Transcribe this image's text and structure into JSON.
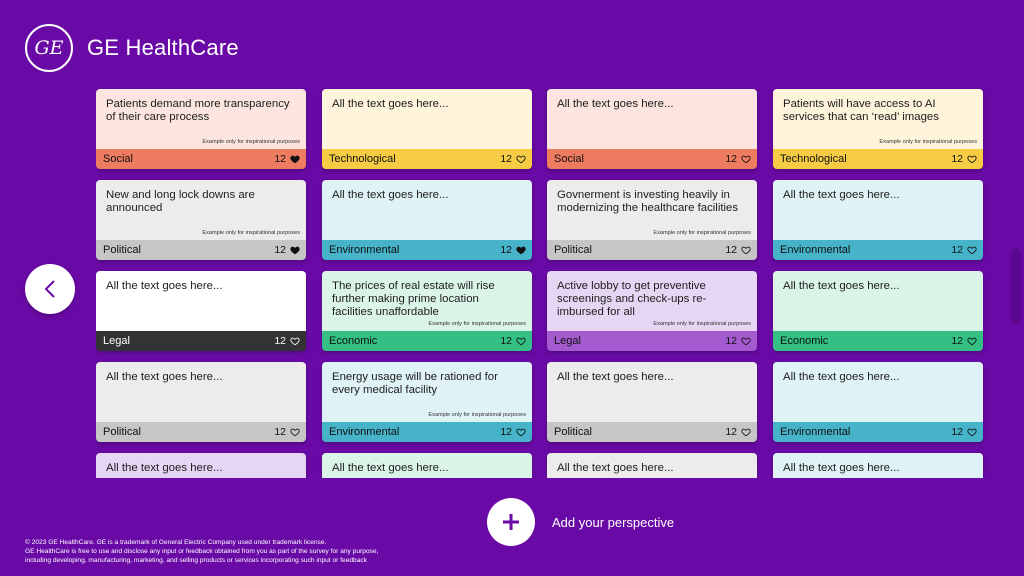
{
  "brand": {
    "logo_text": "GE",
    "name": "GE HealthCare"
  },
  "colors": {
    "background": "#6a0aa6",
    "Social": {
      "body": "#fde5df",
      "footer": "#ee7c60"
    },
    "Technological": {
      "body": "#fef4dc",
      "footer": "#f6cc45"
    },
    "Political": {
      "body": "#ececec",
      "footer": "#c6c6c6"
    },
    "Environmental": {
      "body": "#dff2f5",
      "footer": "#46b3c8"
    },
    "Legal": {
      "body": "#ffffff",
      "footer": "#333333"
    },
    "Economic": {
      "body": "#dbf4e8",
      "footer": "#34c084"
    },
    "LegalPurple": {
      "body": "#e6d6f4",
      "footer": "#a45bd0"
    }
  },
  "cards": [
    {
      "text": "Patients demand more transparency of their care process",
      "note": "Example only for inspirational purposes",
      "category": "Social",
      "likes": "12",
      "liked": true
    },
    {
      "text": "All the text goes here...",
      "note": "",
      "category": "Technological",
      "likes": "12",
      "liked": false
    },
    {
      "text": "All the text goes here...",
      "note": "",
      "category": "Social",
      "likes": "12",
      "liked": false
    },
    {
      "text": "Patients will have access to AI services that can ‘read’ images",
      "note": "Example only for inspirational purposes",
      "category": "Technological",
      "likes": "12",
      "liked": false
    },
    {
      "text": "New and long lock downs are announced",
      "note": "Example only for inspirational purposes",
      "category": "Political",
      "likes": "12",
      "liked": true
    },
    {
      "text": "All the text goes here...",
      "note": "",
      "category": "Environmental",
      "likes": "12",
      "liked": true
    },
    {
      "text": "Govnerment is investing heavily in modernizing the healthcare facilities",
      "note": "Example only for inspirational purposes",
      "category": "Political",
      "likes": "12",
      "liked": false
    },
    {
      "text": "All the text goes here...",
      "note": "",
      "category": "Environmental",
      "likes": "12",
      "liked": false
    },
    {
      "text": "All the text goes here...",
      "note": "",
      "category": "Legal",
      "likes": "12",
      "liked": false
    },
    {
      "text": "The prices of real estate will rise further making prime location facilities unaffordable",
      "note": "Example only for inspirational purposes",
      "category": "Economic",
      "likes": "12",
      "liked": false
    },
    {
      "text": "Active lobby to get preventive screenings and check-ups re-imbursed for all",
      "note": "Example only for inspirational purposes",
      "category": "Legal",
      "likes": "12",
      "liked": false
    },
    {
      "text": "All the text goes here...",
      "note": "",
      "category": "Economic",
      "likes": "12",
      "liked": false
    },
    {
      "text": "All the text goes here...",
      "note": "",
      "category": "Political",
      "likes": "12",
      "liked": false
    },
    {
      "text": "Energy usage will be rationed for every medical facility",
      "note": "Example only for inspirational purposes",
      "category": "Environmental",
      "likes": "12",
      "liked": false
    },
    {
      "text": "All the text goes here...",
      "note": "",
      "category": "Political",
      "likes": "12",
      "liked": false
    },
    {
      "text": "All the text goes here...",
      "note": "",
      "category": "Environmental",
      "likes": "12",
      "liked": false
    },
    {
      "text": "All the text goes here...",
      "note": "",
      "category": "",
      "likes": "",
      "liked": false
    },
    {
      "text": "All the text goes here...",
      "note": "",
      "category": "",
      "likes": "",
      "liked": false
    },
    {
      "text": "All the text goes here...",
      "note": "",
      "category": "",
      "likes": "",
      "liked": false
    },
    {
      "text": "All the text goes here...",
      "note": "",
      "category": "",
      "likes": "",
      "liked": false
    }
  ],
  "navigation": {
    "previous_icon": "chevron-left-icon"
  },
  "actions": {
    "add_label": "Add your perspective",
    "add_icon": "plus-icon"
  },
  "footer": {
    "line1": "© 2023 GE HealthCare. GE is a trademark of General Electric Company used under trademark license.",
    "line2": "GE HealthCare is free to use and disclose any input or feedback obtained from you as part of the survey for any purpose,",
    "line3": "including developing, manufacturing, marketing, and selling products or services incorporating such input or feedback"
  }
}
